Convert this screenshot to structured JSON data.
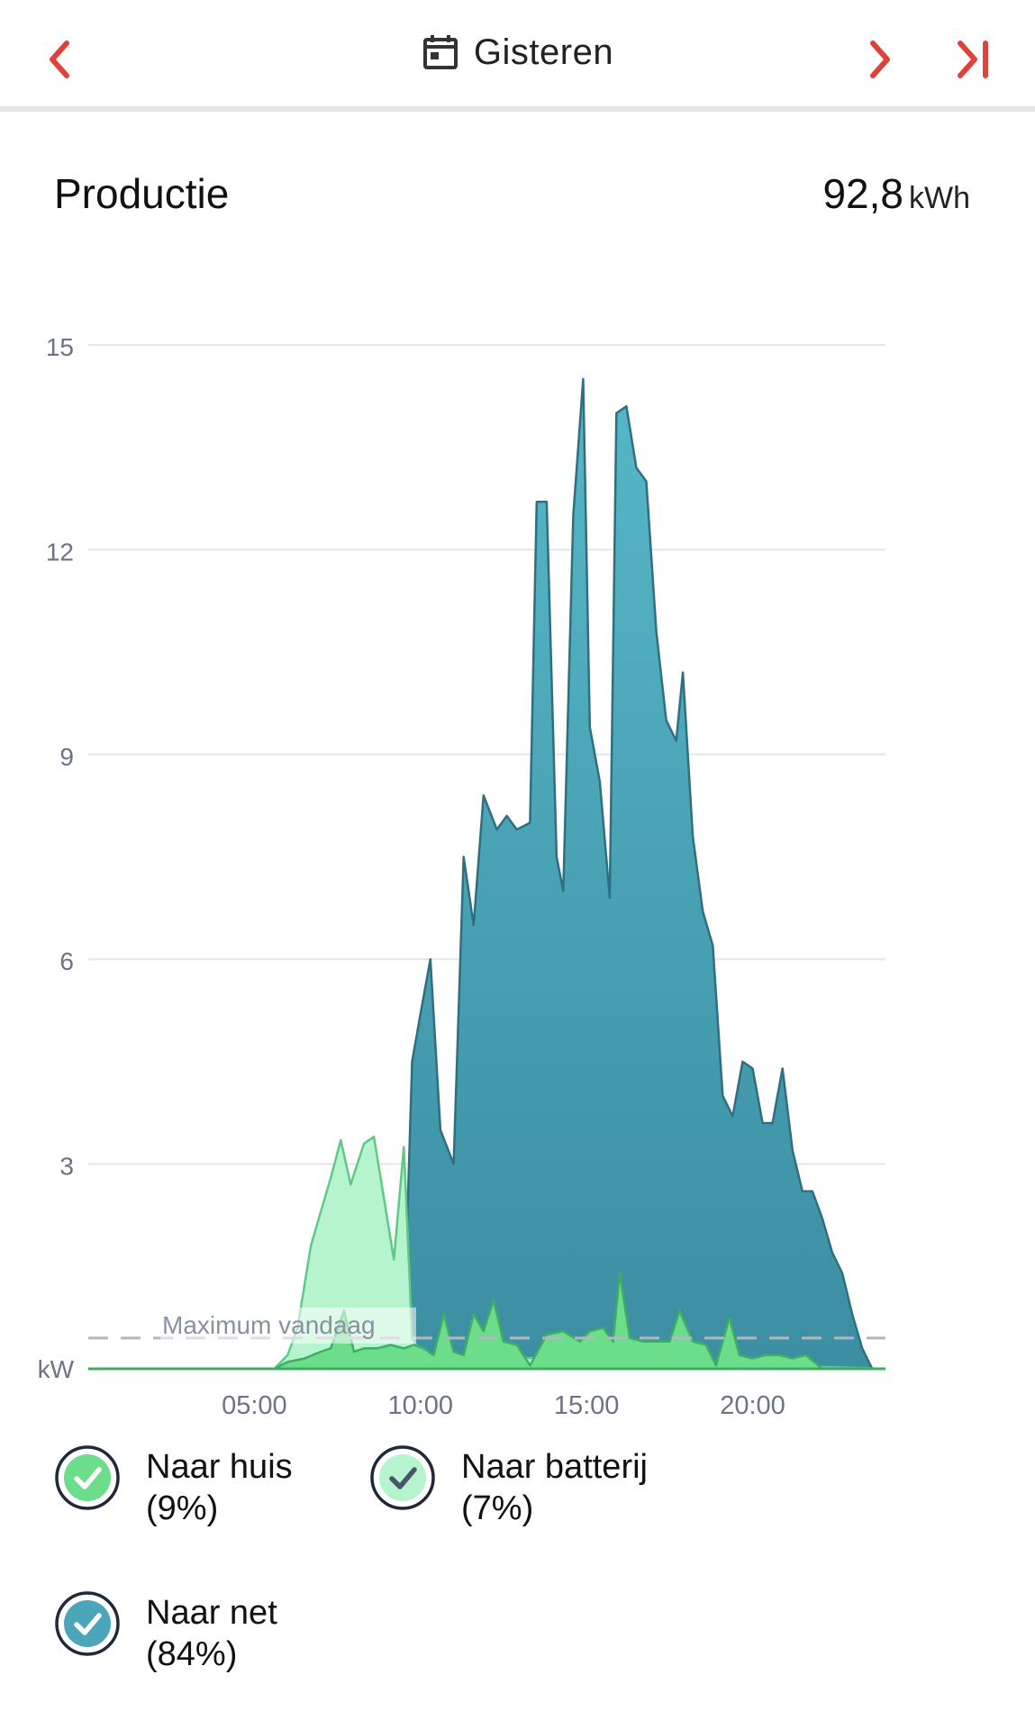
{
  "header": {
    "title": "Gisteren",
    "prev_icon": "chevron-left-icon",
    "next_icon": "chevron-right-icon",
    "last_icon": "skip-to-end-icon",
    "calendar_icon": "calendar-icon",
    "accent_color": "#e0413a"
  },
  "summary": {
    "label": "Productie",
    "value": "92,8",
    "unit": "kWh"
  },
  "chart_data": {
    "type": "area",
    "ylabel": "kW",
    "ylim": [
      0,
      15
    ],
    "yticks": [
      "3",
      "6",
      "9",
      "12",
      "15"
    ],
    "ytick_values": [
      3,
      6,
      9,
      12,
      15
    ],
    "xlim": [
      0,
      24
    ],
    "xticks": [
      "05:00",
      "10:00",
      "15:00",
      "20:00"
    ],
    "xtick_values": [
      5,
      10,
      15,
      20
    ],
    "grid": true,
    "reference_line": {
      "label": "Maximum vandaag",
      "value": 0.45,
      "style": "dashed"
    },
    "stacked": true,
    "series": [
      {
        "name": "Naar huis",
        "color": "#6cdd8a",
        "points": [
          [
            0,
            0
          ],
          [
            5.6,
            0
          ],
          [
            6,
            0.1
          ],
          [
            6.5,
            0.15
          ],
          [
            7,
            0.25
          ],
          [
            7.3,
            0.3
          ],
          [
            7.7,
            0.85
          ],
          [
            8,
            0.25
          ],
          [
            8.3,
            0.3
          ],
          [
            8.7,
            0.3
          ],
          [
            9.1,
            0.35
          ],
          [
            9.5,
            0.3
          ],
          [
            9.8,
            0.35
          ],
          [
            10.1,
            0.3
          ],
          [
            10.4,
            0.2
          ],
          [
            10.7,
            0.8
          ],
          [
            11,
            0.25
          ],
          [
            11.3,
            0.2
          ],
          [
            11.6,
            0.8
          ],
          [
            11.9,
            0.55
          ],
          [
            12.2,
            1.0
          ],
          [
            12.5,
            0.4
          ],
          [
            12.9,
            0.35
          ],
          [
            13.3,
            0.05
          ],
          [
            13.8,
            0.5
          ],
          [
            14.3,
            0.55
          ],
          [
            14.8,
            0.4
          ],
          [
            15.1,
            0.55
          ],
          [
            15.5,
            0.6
          ],
          [
            15.8,
            0.4
          ],
          [
            16.0,
            1.4
          ],
          [
            16.3,
            0.45
          ],
          [
            16.7,
            0.4
          ],
          [
            17.1,
            0.4
          ],
          [
            17.5,
            0.4
          ],
          [
            17.8,
            0.85
          ],
          [
            18.2,
            0.4
          ],
          [
            18.6,
            0.35
          ],
          [
            18.9,
            0.05
          ],
          [
            19.3,
            0.75
          ],
          [
            19.6,
            0.2
          ],
          [
            20.0,
            0.15
          ],
          [
            20.4,
            0.2
          ],
          [
            20.8,
            0.2
          ],
          [
            21.2,
            0.15
          ],
          [
            21.6,
            0.2
          ],
          [
            22.1,
            0
          ],
          [
            24,
            0
          ]
        ]
      },
      {
        "name": "Naar batterij",
        "color": "#b6f4cf",
        "points": [
          [
            0,
            0
          ],
          [
            5.6,
            0
          ],
          [
            6.0,
            0.2
          ],
          [
            6.3,
            0.6
          ],
          [
            6.7,
            1.8
          ],
          [
            7.0,
            2.3
          ],
          [
            7.3,
            2.8
          ],
          [
            7.6,
            3.35
          ],
          [
            7.9,
            2.7
          ],
          [
            8.3,
            3.3
          ],
          [
            8.6,
            3.4
          ],
          [
            8.9,
            2.5
          ],
          [
            9.2,
            1.6
          ],
          [
            9.5,
            3.25
          ],
          [
            9.75,
            0.45
          ],
          [
            10.0,
            0.25
          ],
          [
            10.3,
            0.2
          ],
          [
            24,
            0
          ]
        ]
      },
      {
        "name": "Naar net",
        "color": "#4aa6b8",
        "points": [
          [
            0,
            0
          ],
          [
            9.2,
            0
          ],
          [
            9.5,
            0.5
          ],
          [
            9.75,
            4.5
          ],
          [
            10.0,
            5.2
          ],
          [
            10.3,
            6.0
          ],
          [
            10.6,
            3.5
          ],
          [
            11.0,
            3.0
          ],
          [
            11.3,
            7.5
          ],
          [
            11.6,
            6.5
          ],
          [
            11.9,
            8.4
          ],
          [
            12.3,
            7.9
          ],
          [
            12.6,
            8.1
          ],
          [
            12.9,
            7.9
          ],
          [
            13.3,
            8.0
          ],
          [
            13.5,
            12.7
          ],
          [
            13.8,
            12.7
          ],
          [
            14.1,
            7.5
          ],
          [
            14.3,
            7.0
          ],
          [
            14.6,
            12.5
          ],
          [
            14.9,
            14.5
          ],
          [
            15.1,
            9.4
          ],
          [
            15.4,
            8.6
          ],
          [
            15.7,
            6.9
          ],
          [
            15.9,
            14.0
          ],
          [
            16.2,
            14.1
          ],
          [
            16.5,
            13.2
          ],
          [
            16.8,
            13.0
          ],
          [
            17.1,
            10.8
          ],
          [
            17.4,
            9.5
          ],
          [
            17.7,
            9.2
          ],
          [
            17.9,
            10.2
          ],
          [
            18.2,
            7.8
          ],
          [
            18.5,
            6.7
          ],
          [
            18.8,
            6.2
          ],
          [
            19.1,
            4.0
          ],
          [
            19.4,
            3.7
          ],
          [
            19.7,
            4.5
          ],
          [
            20.0,
            4.4
          ],
          [
            20.3,
            3.6
          ],
          [
            20.6,
            3.6
          ],
          [
            20.9,
            4.4
          ],
          [
            21.2,
            3.2
          ],
          [
            21.5,
            2.6
          ],
          [
            21.8,
            2.6
          ],
          [
            22.1,
            2.2
          ],
          [
            22.4,
            1.7
          ],
          [
            22.7,
            1.4
          ],
          [
            23.0,
            0.8
          ],
          [
            23.3,
            0.3
          ],
          [
            23.6,
            0
          ],
          [
            24,
            0
          ]
        ]
      }
    ]
  },
  "legend": [
    {
      "label": "Naar huis",
      "pct": "(9%)",
      "icon": "check-circle-icon",
      "fill": "#6cdd8a",
      "check_color": "#ffffff"
    },
    {
      "label": "Naar batterij",
      "pct": "(7%)",
      "icon": "check-circle-icon",
      "fill": "#b6f4cf",
      "check_color": "#4b5568"
    },
    {
      "label": "Naar net",
      "pct": "(84%)",
      "icon": "check-circle-icon",
      "fill": "#4aa6b8",
      "check_color": "#ffffff"
    }
  ]
}
